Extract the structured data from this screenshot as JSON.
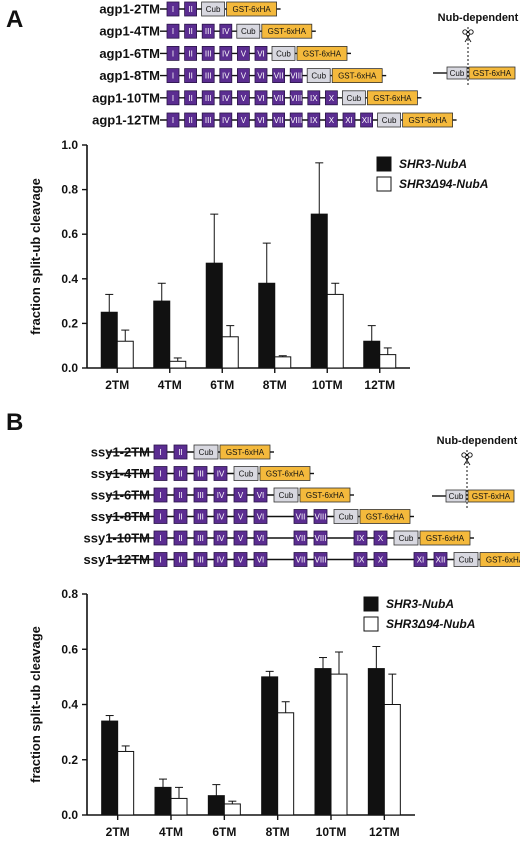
{
  "panels": [
    {
      "letter": "A",
      "constructs": [
        {
          "name": "agp1-2TM",
          "tm": [
            "I",
            "II"
          ]
        },
        {
          "name": "agp1-4TM",
          "tm": [
            "I",
            "II",
            "III",
            "IV"
          ]
        },
        {
          "name": "agp1-6TM",
          "tm": [
            "I",
            "II",
            "III",
            "IV",
            "V",
            "VI"
          ]
        },
        {
          "name": "agp1-8TM",
          "tm": [
            "I",
            "II",
            "III",
            "IV",
            "V",
            "VI",
            "VII",
            "VIII"
          ]
        },
        {
          "name": "agp1-10TM",
          "tm": [
            "I",
            "II",
            "III",
            "IV",
            "V",
            "VI",
            "VII",
            "VIII",
            "IX",
            "X"
          ]
        },
        {
          "name": "agp1-12TM",
          "tm": [
            "I",
            "II",
            "III",
            "IV",
            "V",
            "VI",
            "VII",
            "VIII",
            "IX",
            "X",
            "XI",
            "XII"
          ]
        }
      ],
      "cub_label": "Cub",
      "gst_label": "GST-6xHA",
      "nub_label": "Nub-dependent"
    },
    {
      "letter": "B",
      "constructs": [
        {
          "name": "ssy1-2TM",
          "tm": [
            "I",
            "II"
          ]
        },
        {
          "name": "ssy1-4TM",
          "tm": [
            "I",
            "II",
            "III",
            "IV"
          ]
        },
        {
          "name": "ssy1-6TM",
          "tm": [
            "I",
            "II",
            "III",
            "IV",
            "V",
            "VI"
          ]
        },
        {
          "name": "ssy1-8TM",
          "tm": [
            "I",
            "II",
            "III",
            "IV",
            "V",
            "VI",
            "VII",
            "VIII"
          ]
        },
        {
          "name": "ssy1-10TM",
          "tm": [
            "I",
            "II",
            "III",
            "IV",
            "V",
            "VI",
            "VII",
            "VIII",
            "IX",
            "X"
          ]
        },
        {
          "name": "ssy1-12TM",
          "tm": [
            "I",
            "II",
            "III",
            "IV",
            "V",
            "VI",
            "VII",
            "VIII",
            "IX",
            "X",
            "XI",
            "XII"
          ]
        }
      ],
      "cub_label": "Cub",
      "gst_label": "GST-6xHA",
      "nub_label": "Nub-dependent"
    }
  ],
  "colors": {
    "tm_box": "#5b2d91",
    "gst_box": "#f4b93c",
    "cub_box": "#d8d8e0",
    "bar_dark": "#111111",
    "bar_light": "#ffffff"
  },
  "chart_data": [
    {
      "type": "bar",
      "categories": [
        "2TM",
        "4TM",
        "6TM",
        "8TM",
        "10TM",
        "12TM"
      ],
      "ylabel": "fraction split-ub cleavage",
      "ylim": [
        0,
        1.0
      ],
      "yticks": [
        "0.0",
        "0.2",
        "0.4",
        "0.6",
        "0.8",
        "1.0"
      ],
      "legend": "top-right",
      "series": [
        {
          "name": "SHR3-NubA",
          "values": [
            0.25,
            0.3,
            0.47,
            0.38,
            0.69,
            0.12
          ],
          "errors": [
            0.08,
            0.08,
            0.22,
            0.18,
            0.23,
            0.07
          ]
        },
        {
          "name": "SHR3Δ94-NubA",
          "values": [
            0.12,
            0.03,
            0.14,
            0.05,
            0.33,
            0.06
          ],
          "errors": [
            0.05,
            0.015,
            0.05,
            0.005,
            0.05,
            0.03
          ]
        }
      ]
    },
    {
      "type": "bar",
      "categories": [
        "2TM",
        "4TM",
        "6TM",
        "8TM",
        "10TM",
        "12TM"
      ],
      "ylabel": "fraction split-ub cleavage",
      "ylim": [
        0,
        0.8
      ],
      "yticks": [
        "0.0",
        "0.2",
        "0.4",
        "0.6",
        "0.8"
      ],
      "legend": "top-right",
      "series": [
        {
          "name": "SHR3-NubA",
          "values": [
            0.34,
            0.1,
            0.07,
            0.5,
            0.53,
            0.53
          ],
          "errors": [
            0.02,
            0.03,
            0.04,
            0.02,
            0.04,
            0.08
          ]
        },
        {
          "name": "SHR3Δ94-NubA",
          "values": [
            0.23,
            0.06,
            0.04,
            0.37,
            0.51,
            0.4
          ],
          "errors": [
            0.02,
            0.04,
            0.01,
            0.04,
            0.08,
            0.11
          ]
        }
      ]
    }
  ]
}
